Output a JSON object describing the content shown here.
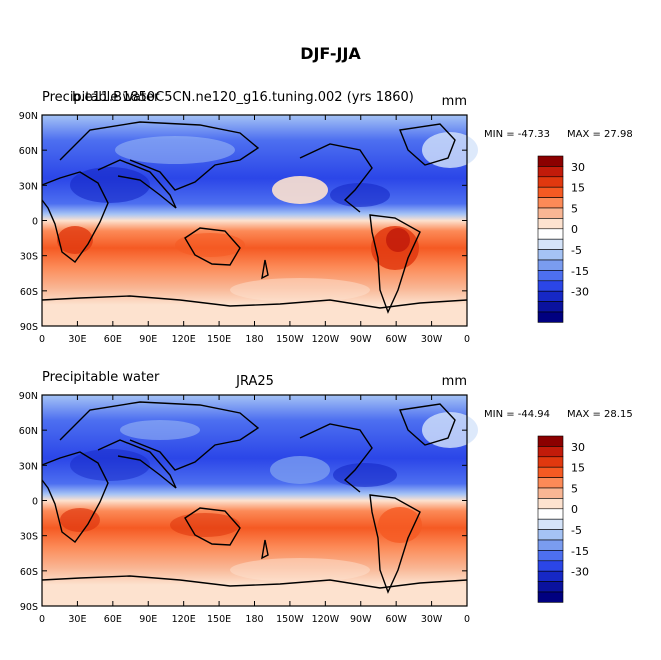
{
  "title": "DJF-JJA",
  "units": "mm",
  "x_ticks": [
    "0",
    "30E",
    "60E",
    "90E",
    "120E",
    "150E",
    "180",
    "150W",
    "120W",
    "90W",
    "60W",
    "30W",
    "0"
  ],
  "y_ticks": [
    "90N",
    "60N",
    "30N",
    "0",
    "30S",
    "60S",
    "90S"
  ],
  "colorbar": {
    "labels": [
      "30",
      "15",
      "5",
      "0",
      "-5",
      "-15",
      "-30"
    ],
    "colors": [
      "#8b0000",
      "#c21b0a",
      "#e0380f",
      "#f55a23",
      "#fc8a57",
      "#f9b694",
      "#fde2cf",
      "#ffffff",
      "#d5e4fa",
      "#a5c3f5",
      "#7a9cf0",
      "#4d6ff0",
      "#2b46e8",
      "#1628c6",
      "#0a129e",
      "#000080"
    ]
  },
  "chart_data": [
    {
      "type": "heatmap",
      "left_title": "Precipitable water",
      "center_title": "b.e11.B1850C5CN.ne120_g16.tuning.002 (yrs 1860)",
      "units": "mm",
      "min_label": "MIN = -47.33",
      "max_label": "MAX =  27.98",
      "min": -47.33,
      "max": 27.98,
      "xlabel_ticks": [
        "0",
        "30E",
        "60E",
        "90E",
        "120E",
        "150E",
        "180",
        "150W",
        "120W",
        "90W",
        "60W",
        "30W",
        "0"
      ],
      "ylabel_ticks": [
        "90N",
        "60N",
        "30N",
        "0",
        "30S",
        "60S",
        "90S"
      ],
      "colorbar_levels": [
        30,
        15,
        5,
        0,
        -5,
        -15,
        -30
      ]
    },
    {
      "type": "heatmap",
      "left_title": "Precipitable water",
      "center_title": "JRA25",
      "units": "mm",
      "min_label": "MIN = -44.94",
      "max_label": "MAX =  28.15",
      "min": -44.94,
      "max": 28.15,
      "xlabel_ticks": [
        "0",
        "30E",
        "60E",
        "90E",
        "120E",
        "150E",
        "180",
        "150W",
        "120W",
        "90W",
        "60W",
        "30W",
        "0"
      ],
      "ylabel_ticks": [
        "90N",
        "60N",
        "30N",
        "0",
        "30S",
        "60S",
        "90S"
      ],
      "colorbar_levels": [
        30,
        15,
        5,
        0,
        -5,
        -15,
        -30
      ]
    }
  ]
}
